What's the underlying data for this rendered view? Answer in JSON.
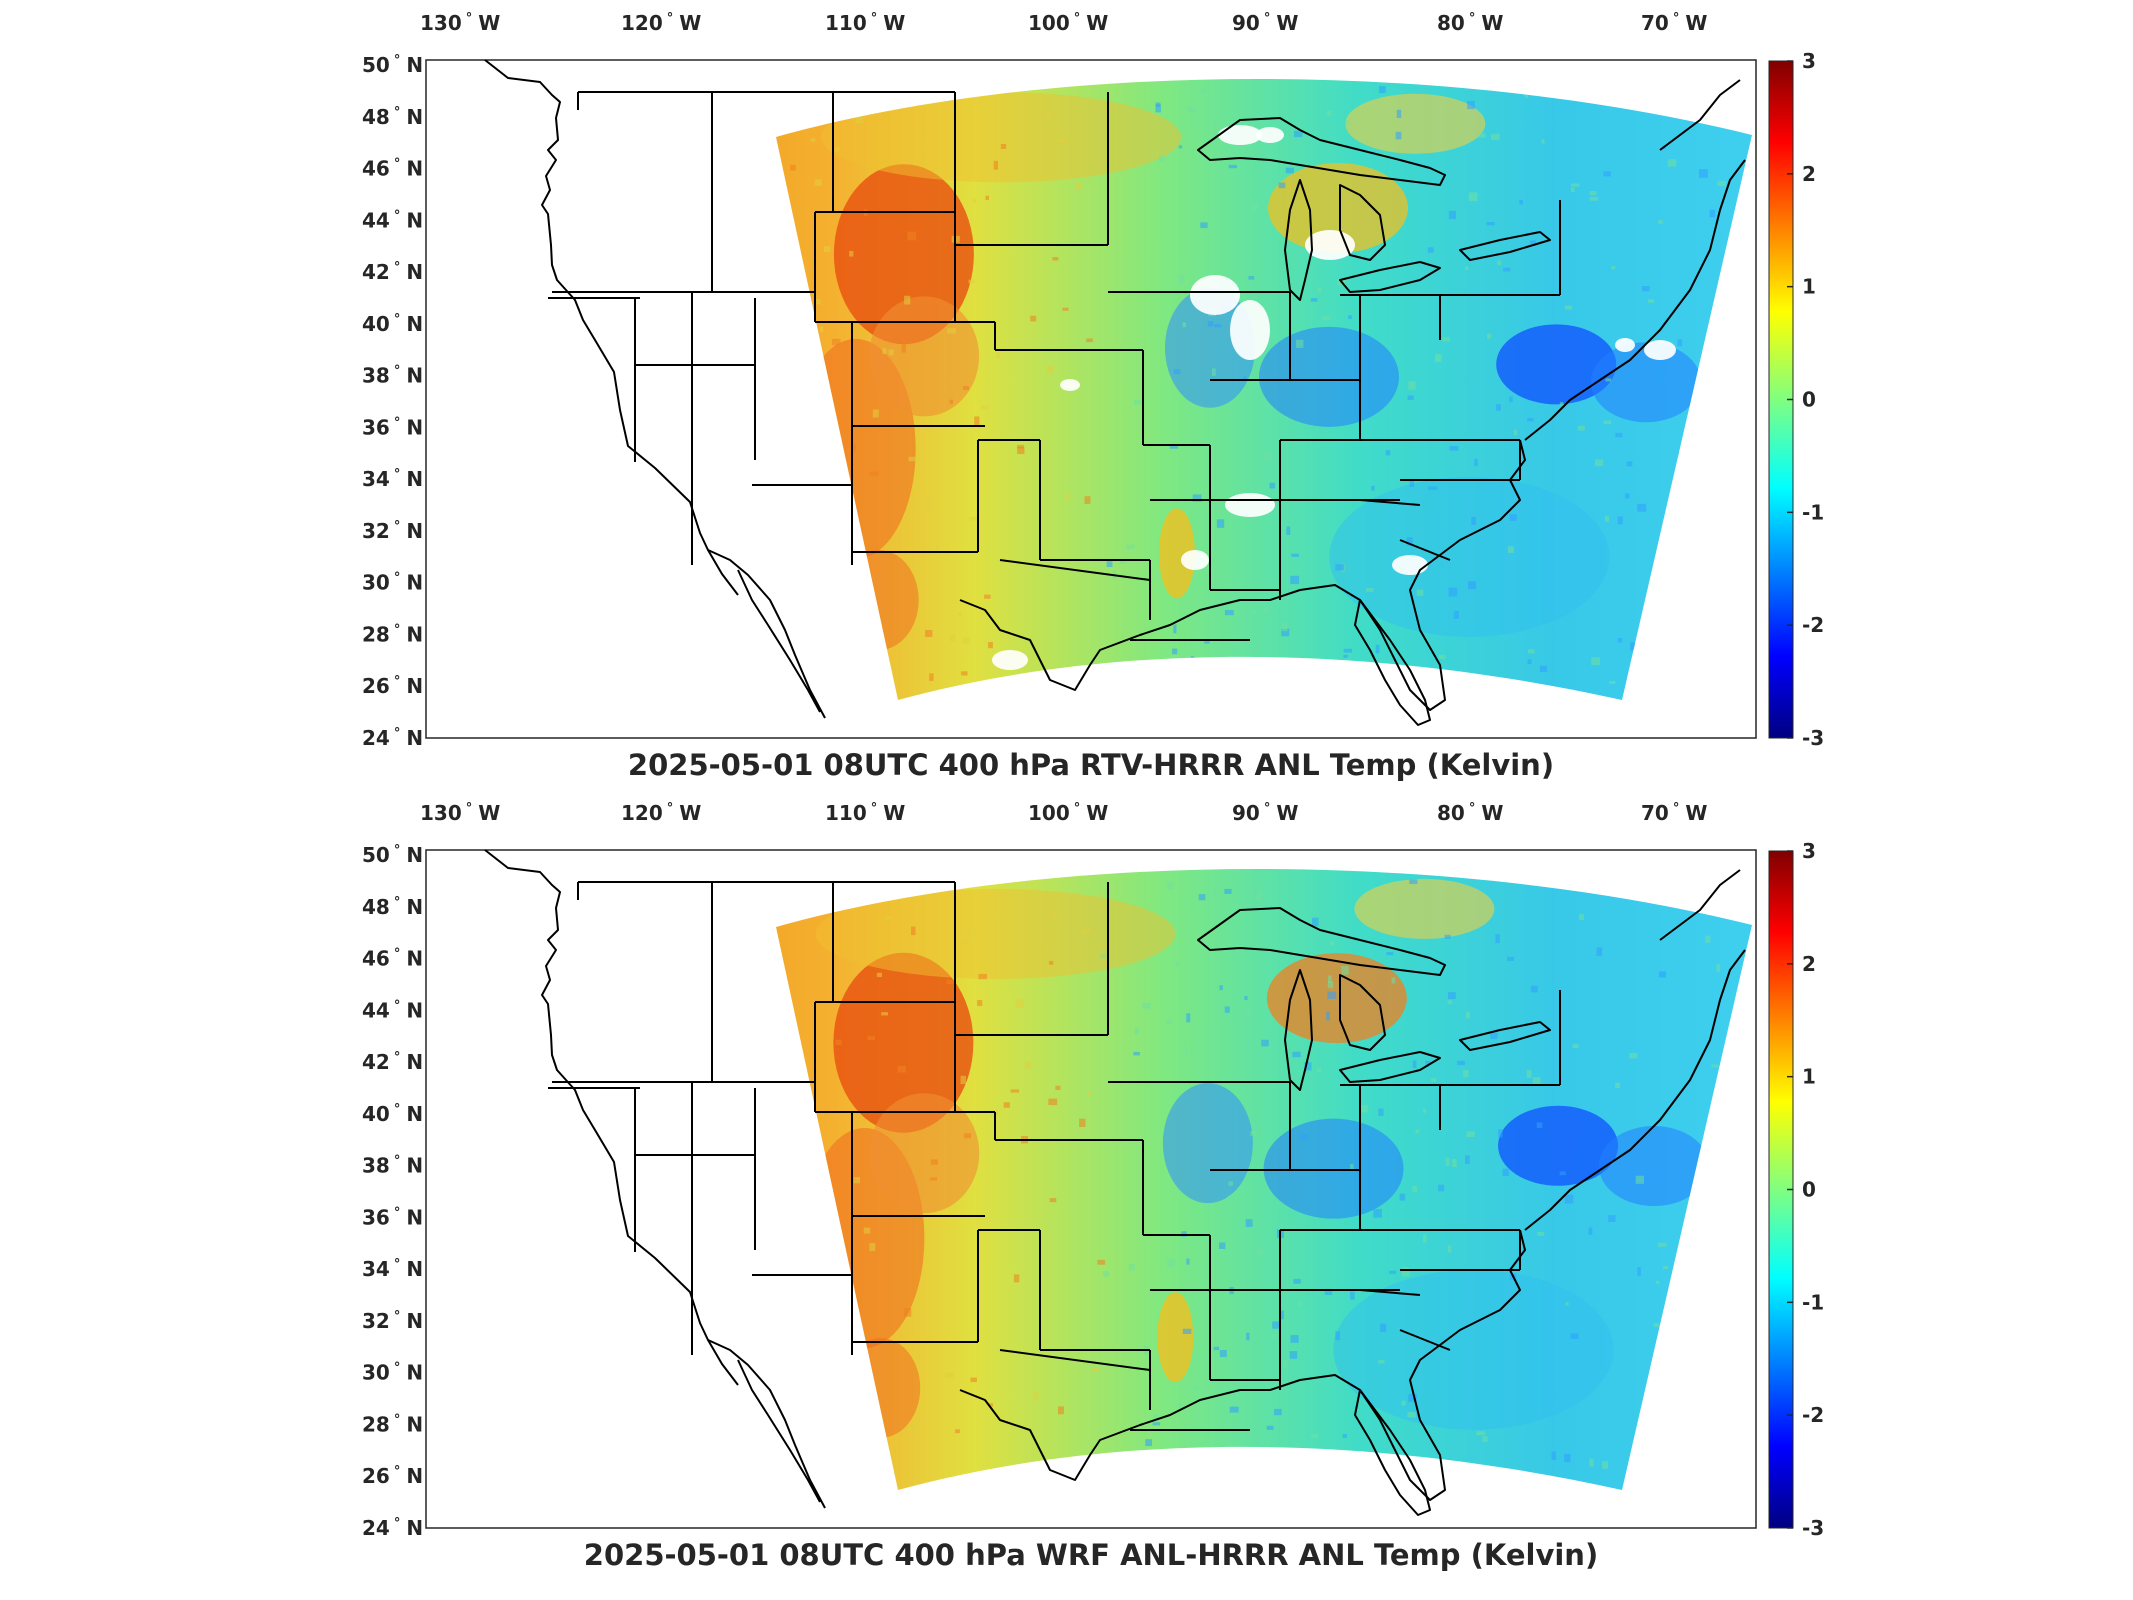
{
  "maps": [
    {
      "title": "2025-05-01 08UTC 400 hPa RTV-HRRR ANL Temp (Kelvin)",
      "variant": "rtv"
    },
    {
      "title": "2025-05-01 08UTC 400 hPa WRF ANL-HRRR ANL Temp (Kelvin)",
      "variant": "wrf"
    }
  ],
  "axes": {
    "lon_ticks": [
      {
        "value": "130",
        "hemi": "W"
      },
      {
        "value": "120",
        "hemi": "W"
      },
      {
        "value": "110",
        "hemi": "W"
      },
      {
        "value": "100",
        "hemi": "W"
      },
      {
        "value": "90",
        "hemi": "W"
      },
      {
        "value": "80",
        "hemi": "W"
      },
      {
        "value": "70",
        "hemi": "W"
      }
    ],
    "lat_ticks": [
      {
        "value": "50",
        "hemi": "N"
      },
      {
        "value": "48",
        "hemi": "N"
      },
      {
        "value": "46",
        "hemi": "N"
      },
      {
        "value": "44",
        "hemi": "N"
      },
      {
        "value": "42",
        "hemi": "N"
      },
      {
        "value": "40",
        "hemi": "N"
      },
      {
        "value": "38",
        "hemi": "N"
      },
      {
        "value": "36",
        "hemi": "N"
      },
      {
        "value": "34",
        "hemi": "N"
      },
      {
        "value": "32",
        "hemi": "N"
      },
      {
        "value": "30",
        "hemi": "N"
      },
      {
        "value": "28",
        "hemi": "N"
      },
      {
        "value": "26",
        "hemi": "N"
      },
      {
        "value": "24",
        "hemi": "N"
      }
    ]
  },
  "colorbar": {
    "ticks": [
      "3",
      "2",
      "1",
      "0",
      "-1",
      "-2",
      "-3"
    ],
    "colormap": "jet",
    "range": [
      -3,
      3
    ]
  },
  "colors": {
    "positive": "#e8500a",
    "neutral": "#3ee6c8",
    "negative": "#1e64ff",
    "missing": "#ffffff",
    "border": "#000000"
  }
}
